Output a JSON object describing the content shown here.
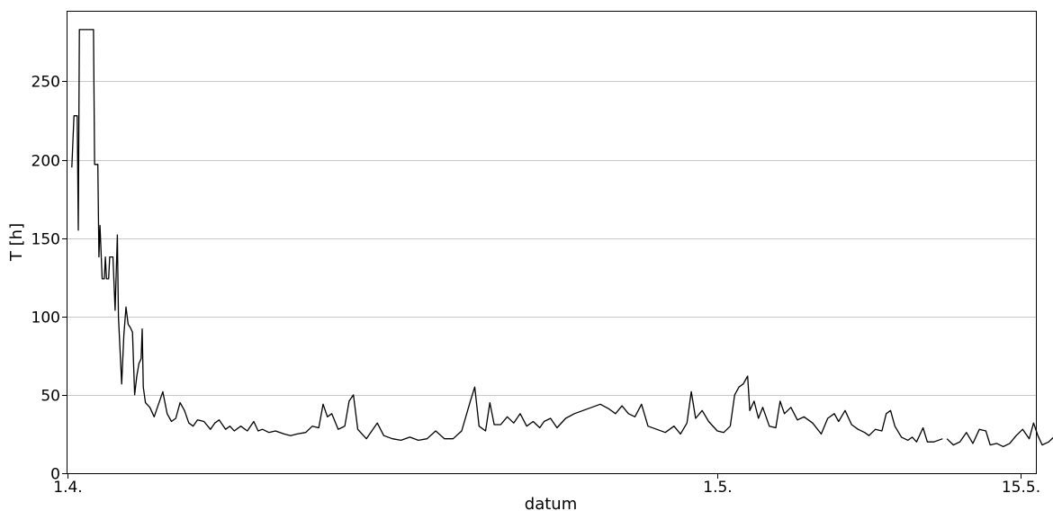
{
  "chart_data": {
    "type": "line",
    "title": "",
    "xlabel": "datum",
    "ylabel": "T [h]",
    "x_ticks": [
      {
        "label": "1.4.",
        "day": 0
      },
      {
        "label": "1.5.",
        "day": 30
      },
      {
        "label": "15.5.",
        "day": 44
      }
    ],
    "y_ticks": [
      0,
      50,
      100,
      150,
      200,
      250
    ],
    "ylim": [
      0,
      295
    ],
    "xlim_day": [
      0,
      45
    ],
    "grid": "horizontal",
    "series": [
      {
        "segments": [
          [
            [
              0.2,
              195
            ],
            [
              0.3,
              228
            ],
            [
              0.45,
              228
            ],
            [
              0.5,
              155
            ],
            [
              0.55,
              283
            ],
            [
              1.2,
              283
            ],
            [
              1.25,
              197
            ],
            [
              1.4,
              197
            ],
            [
              1.45,
              138
            ],
            [
              1.5,
              158
            ],
            [
              1.6,
              124
            ],
            [
              1.7,
              124
            ],
            [
              1.75,
              138
            ],
            [
              1.8,
              124
            ],
            [
              1.9,
              124
            ],
            [
              1.95,
              138
            ],
            [
              2.1,
              138
            ],
            [
              2.2,
              104
            ],
            [
              2.3,
              152
            ],
            [
              2.35,
              100
            ],
            [
              2.5,
              57
            ],
            [
              2.6,
              88
            ],
            [
              2.7,
              106
            ],
            [
              2.8,
              95
            ],
            [
              2.9,
              93
            ],
            [
              3.0,
              90
            ],
            [
              3.1,
              50
            ],
            [
              3.2,
              62
            ],
            [
              3.3,
              70
            ],
            [
              3.4,
              73
            ],
            [
              3.45,
              92
            ],
            [
              3.5,
              55
            ],
            [
              3.6,
              45
            ],
            [
              3.8,
              42
            ],
            [
              4.0,
              36
            ],
            [
              4.2,
              44
            ],
            [
              4.4,
              52
            ],
            [
              4.6,
              38
            ],
            [
              4.8,
              33
            ],
            [
              5.0,
              35
            ],
            [
              5.2,
              45
            ],
            [
              5.4,
              40
            ],
            [
              5.6,
              32
            ],
            [
              5.8,
              30
            ],
            [
              6.0,
              34
            ],
            [
              6.3,
              33
            ],
            [
              6.6,
              28
            ],
            [
              6.8,
              32
            ],
            [
              7.0,
              34
            ],
            [
              7.3,
              28
            ],
            [
              7.5,
              30
            ],
            [
              7.7,
              27
            ],
            [
              8.0,
              30
            ],
            [
              8.3,
              27
            ],
            [
              8.6,
              33
            ],
            [
              8.8,
              27
            ],
            [
              9.0,
              28
            ],
            [
              9.3,
              26
            ],
            [
              9.6,
              27
            ],
            [
              10.0,
              25
            ],
            [
              10.3,
              24
            ],
            [
              10.6,
              25
            ],
            [
              11.0,
              26
            ],
            [
              11.3,
              30
            ],
            [
              11.6,
              29
            ],
            [
              11.8,
              44
            ],
            [
              12.0,
              36
            ],
            [
              12.2,
              38
            ],
            [
              12.5,
              28
            ],
            [
              12.8,
              30
            ],
            [
              13.0,
              46
            ],
            [
              13.2,
              50
            ],
            [
              13.4,
              28
            ],
            [
              13.6,
              25
            ],
            [
              13.8,
              22
            ],
            [
              14.0,
              26
            ],
            [
              14.3,
              32
            ],
            [
              14.6,
              24
            ],
            [
              15.0,
              22
            ],
            [
              15.4,
              21
            ],
            [
              15.8,
              23
            ],
            [
              16.2,
              21
            ],
            [
              16.6,
              22
            ],
            [
              17.0,
              27
            ],
            [
              17.4,
              22
            ],
            [
              17.8,
              22
            ],
            [
              18.2,
              27
            ],
            [
              18.6,
              46
            ],
            [
              18.8,
              55
            ],
            [
              19.0,
              30
            ],
            [
              19.3,
              27
            ],
            [
              19.5,
              45
            ],
            [
              19.7,
              31
            ],
            [
              20.0,
              31
            ],
            [
              20.3,
              36
            ],
            [
              20.6,
              32
            ],
            [
              20.9,
              38
            ],
            [
              21.2,
              30
            ],
            [
              21.5,
              33
            ],
            [
              21.8,
              29
            ],
            [
              22.0,
              33
            ],
            [
              22.3,
              35
            ],
            [
              22.6,
              29
            ],
            [
              23.0,
              35
            ],
            [
              23.4,
              38
            ],
            [
              23.8,
              40
            ],
            [
              24.2,
              42
            ],
            [
              24.6,
              44
            ],
            [
              25.0,
              41
            ],
            [
              25.3,
              38
            ],
            [
              25.6,
              43
            ],
            [
              25.9,
              38
            ],
            [
              26.2,
              36
            ],
            [
              26.5,
              44
            ],
            [
              26.8,
              30
            ],
            [
              27.2,
              28
            ],
            [
              27.6,
              26
            ],
            [
              28.0,
              30
            ],
            [
              28.3,
              25
            ],
            [
              28.6,
              32
            ],
            [
              28.8,
              52
            ],
            [
              29.0,
              35
            ],
            [
              29.3,
              40
            ],
            [
              29.6,
              33
            ],
            [
              30.0,
              27
            ],
            [
              30.3,
              26
            ],
            [
              30.6,
              30
            ],
            [
              30.8,
              50
            ],
            [
              31.0,
              55
            ],
            [
              31.2,
              57
            ],
            [
              31.4,
              62
            ],
            [
              31.5,
              40
            ],
            [
              31.7,
              46
            ],
            [
              31.9,
              35
            ],
            [
              32.1,
              42
            ],
            [
              32.4,
              30
            ],
            [
              32.7,
              29
            ],
            [
              32.9,
              46
            ],
            [
              33.1,
              38
            ],
            [
              33.4,
              42
            ],
            [
              33.7,
              34
            ],
            [
              34.0,
              36
            ],
            [
              34.4,
              32
            ],
            [
              34.8,
              25
            ],
            [
              35.1,
              35
            ],
            [
              35.4,
              38
            ],
            [
              35.6,
              33
            ],
            [
              35.9,
              40
            ],
            [
              36.2,
              31
            ],
            [
              36.5,
              28
            ],
            [
              36.8,
              26
            ],
            [
              37.0,
              24
            ],
            [
              37.3,
              28
            ],
            [
              37.6,
              27
            ],
            [
              37.8,
              38
            ],
            [
              38.0,
              40
            ],
            [
              38.2,
              30
            ],
            [
              38.5,
              23
            ],
            [
              38.8,
              21
            ],
            [
              39.0,
              23
            ],
            [
              39.2,
              20
            ],
            [
              39.5,
              29
            ],
            [
              39.7,
              20
            ],
            [
              40.0,
              20
            ],
            [
              40.4,
              22
            ]
          ],
          [
            [
              40.6,
              22
            ],
            [
              40.9,
              18
            ],
            [
              41.2,
              20
            ],
            [
              41.5,
              26
            ],
            [
              41.8,
              19
            ],
            [
              42.1,
              28
            ],
            [
              42.4,
              27
            ],
            [
              42.6,
              18
            ],
            [
              42.9,
              19
            ],
            [
              43.2,
              17
            ],
            [
              43.5,
              19
            ],
            [
              43.8,
              24
            ],
            [
              44.1,
              28
            ],
            [
              44.4,
              22
            ],
            [
              44.6,
              32
            ],
            [
              44.8,
              24
            ],
            [
              45.0,
              18
            ],
            [
              45.3,
              20
            ],
            [
              45.6,
              24
            ],
            [
              45.9,
              19
            ]
          ]
        ]
      }
    ]
  }
}
